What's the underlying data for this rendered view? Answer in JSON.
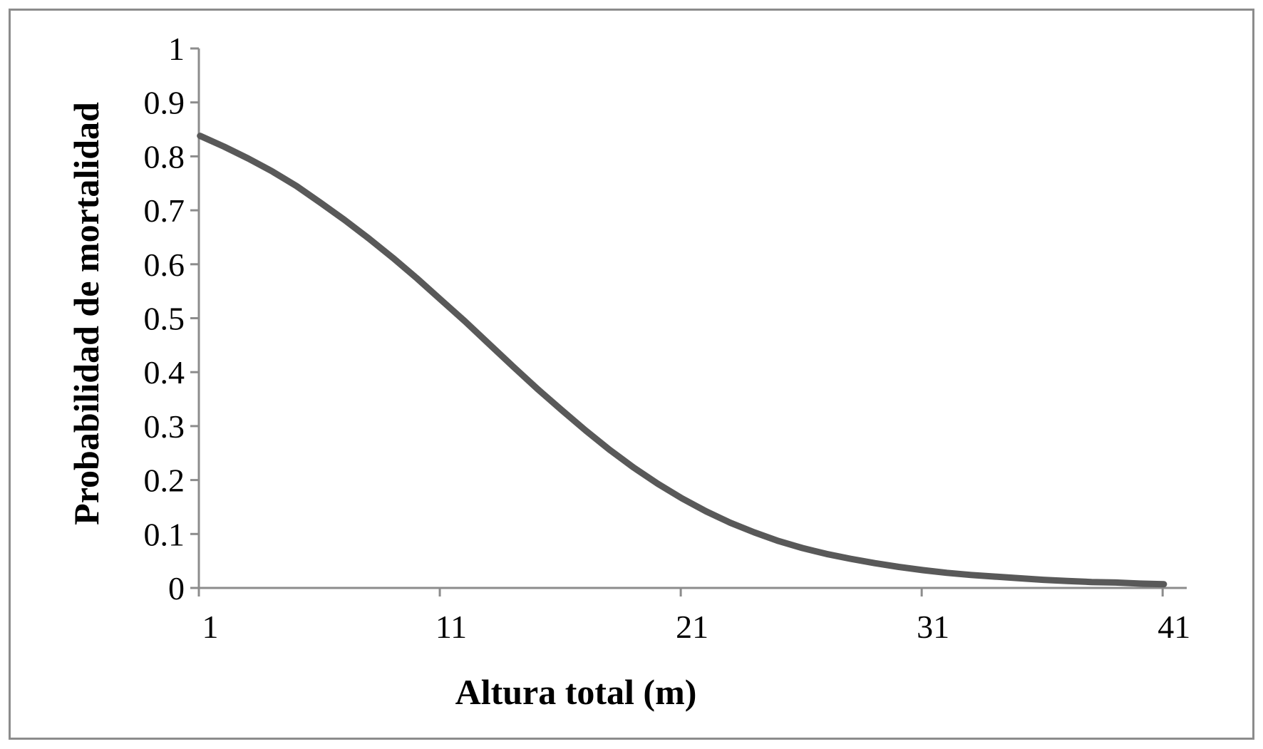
{
  "chart_data": {
    "type": "line",
    "title": "",
    "xlabel": "Altura total (m)",
    "ylabel": "Probabilidad de mortalidad",
    "xlim": [
      1,
      42
    ],
    "ylim": [
      0,
      1
    ],
    "x_ticks": [
      "1",
      "11",
      "21",
      "31",
      "41"
    ],
    "y_ticks": [
      "0",
      "0.1",
      "0.2",
      "0.3",
      "0.4",
      "0.5",
      "0.6",
      "0.7",
      "0.8",
      "0.9",
      "1"
    ],
    "grid": false,
    "legend": "none",
    "line_color": "#595959",
    "axis_color": "#8c8c8c",
    "series": [
      {
        "x": [
          1,
          2,
          3,
          4,
          5,
          6,
          7,
          8,
          9,
          10,
          11,
          12,
          13,
          14,
          15,
          16,
          17,
          18,
          19,
          20,
          21,
          22,
          23,
          24,
          25,
          26,
          27,
          28,
          29,
          30,
          31,
          32,
          33,
          34,
          35,
          36,
          37,
          38,
          39,
          40,
          41
        ],
        "values": [
          0.838,
          0.818,
          0.796,
          0.772,
          0.745,
          0.714,
          0.682,
          0.648,
          0.612,
          0.574,
          0.534,
          0.494,
          0.452,
          0.41,
          0.369,
          0.33,
          0.292,
          0.256,
          0.223,
          0.193,
          0.166,
          0.142,
          0.121,
          0.103,
          0.087,
          0.074,
          0.063,
          0.054,
          0.046,
          0.039,
          0.033,
          0.028,
          0.024,
          0.021,
          0.018,
          0.015,
          0.013,
          0.011,
          0.01,
          0.008,
          0.007
        ]
      }
    ]
  }
}
